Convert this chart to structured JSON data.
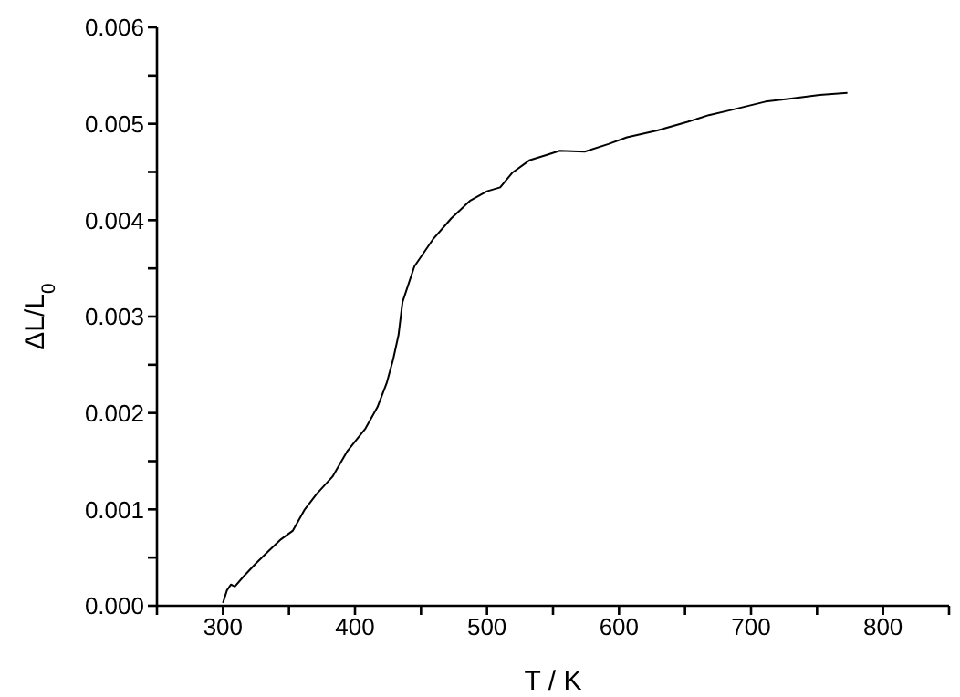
{
  "chart_data": {
    "type": "line",
    "xlabel": "T / K",
    "ylabel": "ΔL/L$_{0}$",
    "xlim": [
      250,
      850
    ],
    "xticks": [
      {
        "value": 250,
        "label": null
      },
      300,
      {
        "value": 350,
        "label": null
      },
      400,
      {
        "value": 450,
        "label": null
      },
      500,
      {
        "value": 550,
        "label": null
      },
      600,
      {
        "value": 650,
        "label": null
      },
      700,
      {
        "value": 750,
        "label": null
      },
      800,
      {
        "value": 850,
        "label": null
      }
    ],
    "ylim": [
      0,
      0.006
    ],
    "yticks": [
      "0.000",
      {
        "value": 0.0005,
        "label": null
      },
      {
        "value": 0.001,
        "label": "0.001"
      },
      {
        "value": 0.0015,
        "label": null
      },
      {
        "value": 0.002,
        "label": "0.002"
      },
      {
        "value": 0.0025,
        "label": null
      },
      {
        "value": 0.003,
        "label": "0.003"
      },
      {
        "value": 0.0035,
        "label": null
      },
      {
        "value": 0.004,
        "label": "0.004"
      },
      {
        "value": 0.0045,
        "label": null
      },
      {
        "value": 0.005,
        "label": "0.005"
      },
      {
        "value": 0.0055,
        "label": null
      },
      {
        "value": 0.006,
        "label": "0.006"
      }
    ],
    "grid": false,
    "legend": false,
    "marker": "none",
    "line_style": "solid",
    "series": [
      {
        "color": "#000000",
        "x": [
          300,
          303,
          306,
          309,
          316,
          325,
          334,
          344,
          353,
          362,
          371,
          383,
          394,
          408,
          417,
          424,
          429,
          433,
          436,
          445,
          459,
          473,
          487,
          500,
          510,
          519,
          532,
          546,
          555,
          574,
          592,
          606,
          629,
          652,
          668,
          684,
          711,
          729,
          752,
          773
        ],
        "values": [
          3e-05,
          0.00016,
          0.00022,
          0.0002,
          0.00031,
          0.00044,
          0.00056,
          0.00069,
          0.00078,
          0.001,
          0.00116,
          0.00134,
          0.0016,
          0.00184,
          0.00206,
          0.00231,
          0.00256,
          0.00281,
          0.00315,
          0.00352,
          0.0038,
          0.00402,
          0.0042,
          0.0043,
          0.00434,
          0.00449,
          0.00462,
          0.00468,
          0.00472,
          0.00471,
          0.00479,
          0.00486,
          0.00493,
          0.00502,
          0.00509,
          0.00514,
          0.00523,
          0.00526,
          0.0053,
          0.00532
        ]
      }
    ]
  }
}
